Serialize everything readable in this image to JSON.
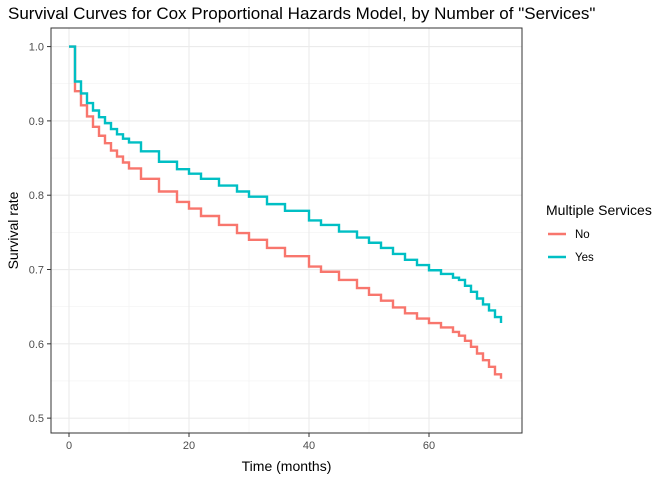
{
  "chart_data": {
    "type": "line",
    "step": true,
    "title": "Survival Curves for Cox Proportional Hazards Model, by Number of \"Services\"",
    "xlabel": "Time (months)",
    "ylabel": "Survival rate",
    "xlim": [
      -3,
      75.5
    ],
    "ylim": [
      0.48,
      1.025
    ],
    "xticks": [
      0,
      20,
      40,
      60
    ],
    "xtick_labels": [
      "0",
      "20",
      "40",
      "60"
    ],
    "yticks": [
      0.5,
      0.6,
      0.7,
      0.8,
      0.9,
      1.0
    ],
    "ytick_labels": [
      "0.5",
      "0.6",
      "0.7",
      "0.8",
      "0.9",
      "1.0"
    ],
    "grid": true,
    "legend_title": "Multiple Services",
    "legend_position": "right",
    "series": [
      {
        "name": "No",
        "color": "#F8766D",
        "x": [
          0,
          1,
          2,
          3,
          4,
          5,
          6,
          7,
          8,
          9,
          10,
          12,
          15,
          18,
          20,
          22,
          25,
          28,
          30,
          33,
          36,
          40,
          42,
          45,
          48,
          50,
          52,
          54,
          56,
          58,
          60,
          62,
          64,
          65,
          66,
          67,
          68,
          69,
          70,
          71,
          72
        ],
        "y": [
          1.0,
          0.94,
          0.921,
          0.906,
          0.892,
          0.88,
          0.87,
          0.86,
          0.852,
          0.844,
          0.836,
          0.822,
          0.805,
          0.791,
          0.782,
          0.772,
          0.76,
          0.749,
          0.74,
          0.729,
          0.718,
          0.704,
          0.697,
          0.686,
          0.675,
          0.666,
          0.658,
          0.649,
          0.641,
          0.634,
          0.628,
          0.622,
          0.616,
          0.611,
          0.604,
          0.596,
          0.587,
          0.578,
          0.569,
          0.559,
          0.553
        ]
      },
      {
        "name": "Yes",
        "color": "#00BFC4",
        "x": [
          0,
          1,
          2,
          3,
          4,
          5,
          6,
          7,
          8,
          9,
          10,
          12,
          15,
          18,
          20,
          22,
          25,
          28,
          30,
          33,
          36,
          40,
          42,
          45,
          48,
          50,
          52,
          54,
          56,
          58,
          60,
          62,
          64,
          65,
          66,
          67,
          68,
          69,
          70,
          71,
          72
        ],
        "y": [
          1.0,
          0.953,
          0.937,
          0.924,
          0.914,
          0.905,
          0.897,
          0.889,
          0.882,
          0.876,
          0.871,
          0.859,
          0.845,
          0.835,
          0.829,
          0.822,
          0.813,
          0.805,
          0.798,
          0.788,
          0.779,
          0.766,
          0.76,
          0.751,
          0.743,
          0.736,
          0.729,
          0.721,
          0.713,
          0.706,
          0.699,
          0.694,
          0.689,
          0.686,
          0.678,
          0.67,
          0.661,
          0.653,
          0.645,
          0.636,
          0.628
        ]
      }
    ]
  }
}
